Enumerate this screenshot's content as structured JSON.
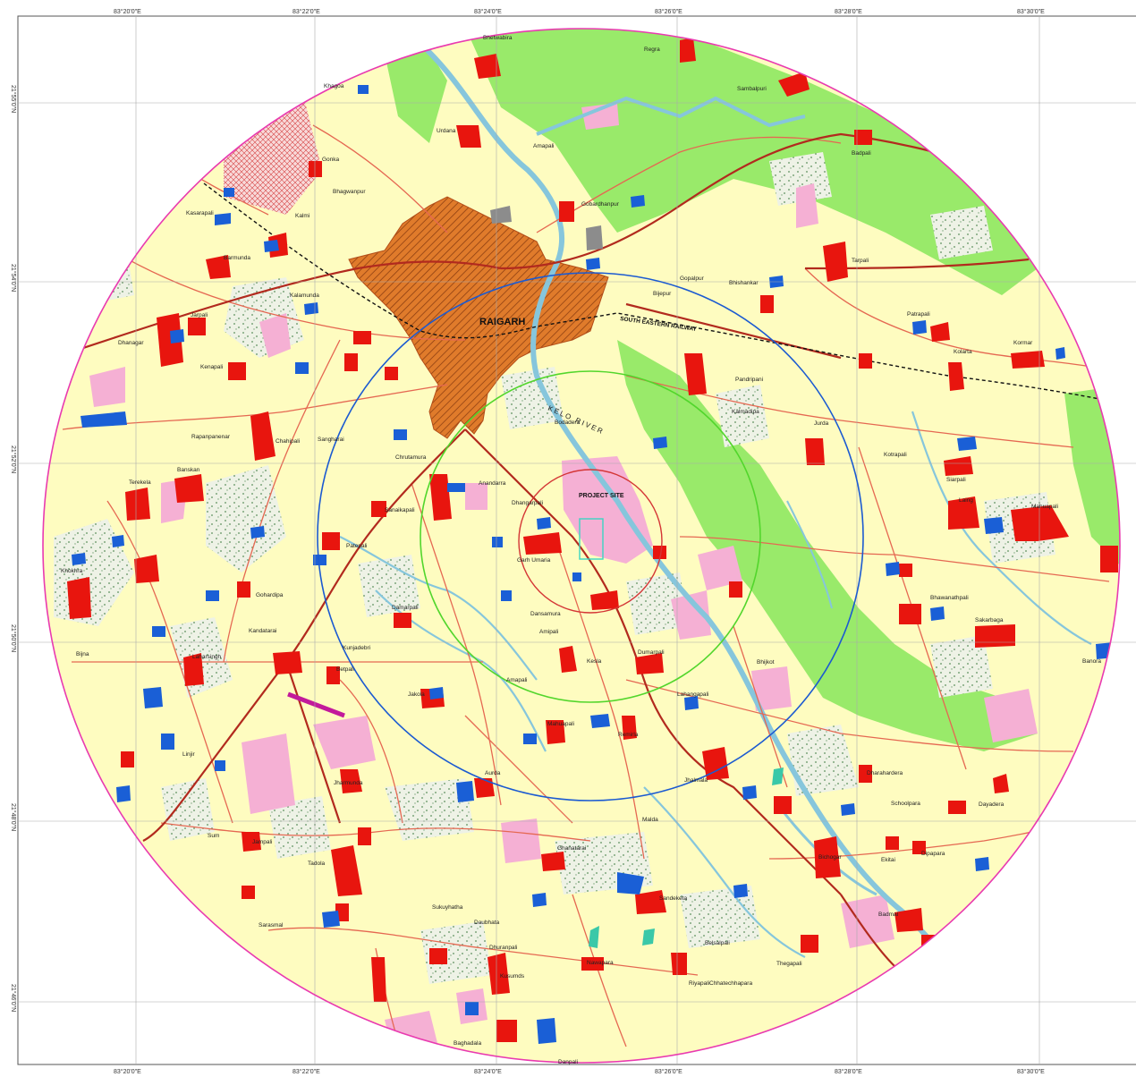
{
  "map": {
    "town_label": "RAIGARH",
    "railway_label": "SOUTH EASTERN RAILWAY",
    "river_label": "KELO RIVER",
    "project_label": "PROJECT SITE",
    "top_ticks": [
      "83°20'0\"E",
      "83°22'0\"E",
      "83°24'0\"E",
      "83°26'0\"E",
      "83°28'0\"E",
      "83°30'0\"E"
    ],
    "bottom_ticks": [
      "83°20'0\"E",
      "83°22'0\"E",
      "83°24'0\"E",
      "83°26'0\"E",
      "83°28'0\"E",
      "83°30'0\"E"
    ],
    "left_ticks": [
      "21°55'0\"N",
      "21°54'0\"N",
      "21°52'0\"N",
      "21°50'0\"N",
      "21°48'0\"N",
      "21°46'0\"N"
    ],
    "villages": [
      "Regra",
      "Bhetwabira",
      "Khagoa",
      "Sambalpuri",
      "Urdana",
      "Amapali",
      "Badpali",
      "Gonka",
      "Bhagwanpur",
      "Kasarapali",
      "Kalmi",
      "Gobardhanpur",
      "Tarpali",
      "Barmunda",
      "Gopalpur",
      "Bijepur",
      "Bhishankar",
      "Kalamunda",
      "Jarpali",
      "Patrapali",
      "Dhanagar",
      "Kolarta",
      "Kormar",
      "Kenapali",
      "Pandripani",
      "Kalmadipa",
      "Rapanpanenar",
      "Chahipali",
      "Sangharai",
      "Bodadera",
      "Jurda",
      "Kotrapali",
      "Siarpali",
      "Banskan",
      "Chrutamura",
      "Anandarra",
      "Dhangarpali",
      "Terekela",
      "Laing",
      "Mahuapali",
      "Sanaikapali",
      "Patepali",
      "Garh Umaria",
      "Khokhra",
      "Gohardipa",
      "Damarpali",
      "Dansamura",
      "Amipali",
      "Bhawanathpali",
      "Sakarbaga",
      "Kandatarai",
      "Laharsingh",
      "Kunjadebri",
      "Bijna",
      "Betpali",
      "Kesla",
      "Dumarpali",
      "Bhijkot",
      "Banora",
      "Amapali",
      "Lahangapali",
      "Jakola",
      "Mahuapali",
      "Linjir",
      "Remirla",
      "Jhalmala",
      "Jharmunda",
      "Aurda",
      "Dharahardera",
      "Schoolpara",
      "Dayadera",
      "Malda",
      "Sum",
      "Jampali",
      "Ghanatarai",
      "Bichogar",
      "Ekitai",
      "Dipapara",
      "Tadola",
      "Sandeketa",
      "Sarasmal",
      "Sukuyhatha",
      "Badmal",
      "Daubhata",
      "Belsalpali",
      "Thegapali",
      "Dhuranpali",
      "Kusumds",
      "Nawapara",
      "Riyapali",
      "Chhatechhapara",
      "Baghadala",
      "Danpali"
    ]
  },
  "colors": {
    "land": "#fefcc0",
    "forest": "#99ea6a",
    "settlement": "#e8150e",
    "water": "#1a5fd6",
    "river": "#86c6dc",
    "road": "#e56852",
    "highway": "#b22a1e",
    "urban": "#e07b2b",
    "pink": "#f5b0d4",
    "ring_10km": "#1b5ad1",
    "ring_7km": "#52d62c",
    "ring_3km": "#d43535",
    "boundary": "#e93ab0"
  }
}
